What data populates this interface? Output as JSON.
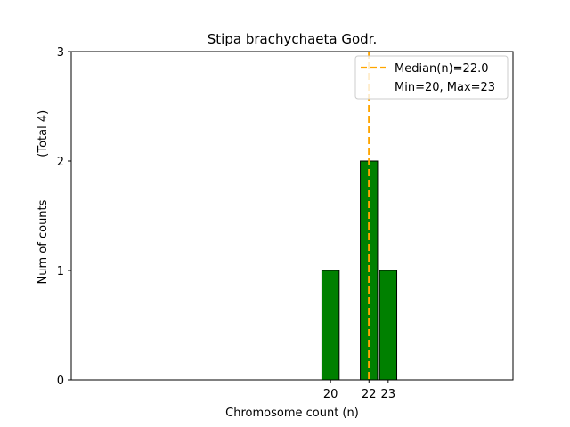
{
  "chart_data": {
    "type": "bar",
    "title": "Stipa brachychaeta Godr.",
    "xlabel": "Chromosome count (n)",
    "ylabel": "Num of counts",
    "ylabel_total": "(Total 4)",
    "x": [
      20,
      22,
      23
    ],
    "values": [
      1,
      2,
      1
    ],
    "xticks": [
      "20",
      "22",
      "23"
    ],
    "yticks": [
      0,
      1,
      2,
      3
    ],
    "ylim": [
      0,
      3
    ],
    "xlim": [
      6.5,
      29.5
    ],
    "grid": false,
    "bar_color": "#008000",
    "bar_edge_color": "#000000",
    "median": 22.0,
    "median_color": "#ffa500",
    "legend": {
      "placement": "top-right",
      "entries": [
        "Median(n)=22.0",
        "Min=20, Max=23"
      ]
    }
  }
}
